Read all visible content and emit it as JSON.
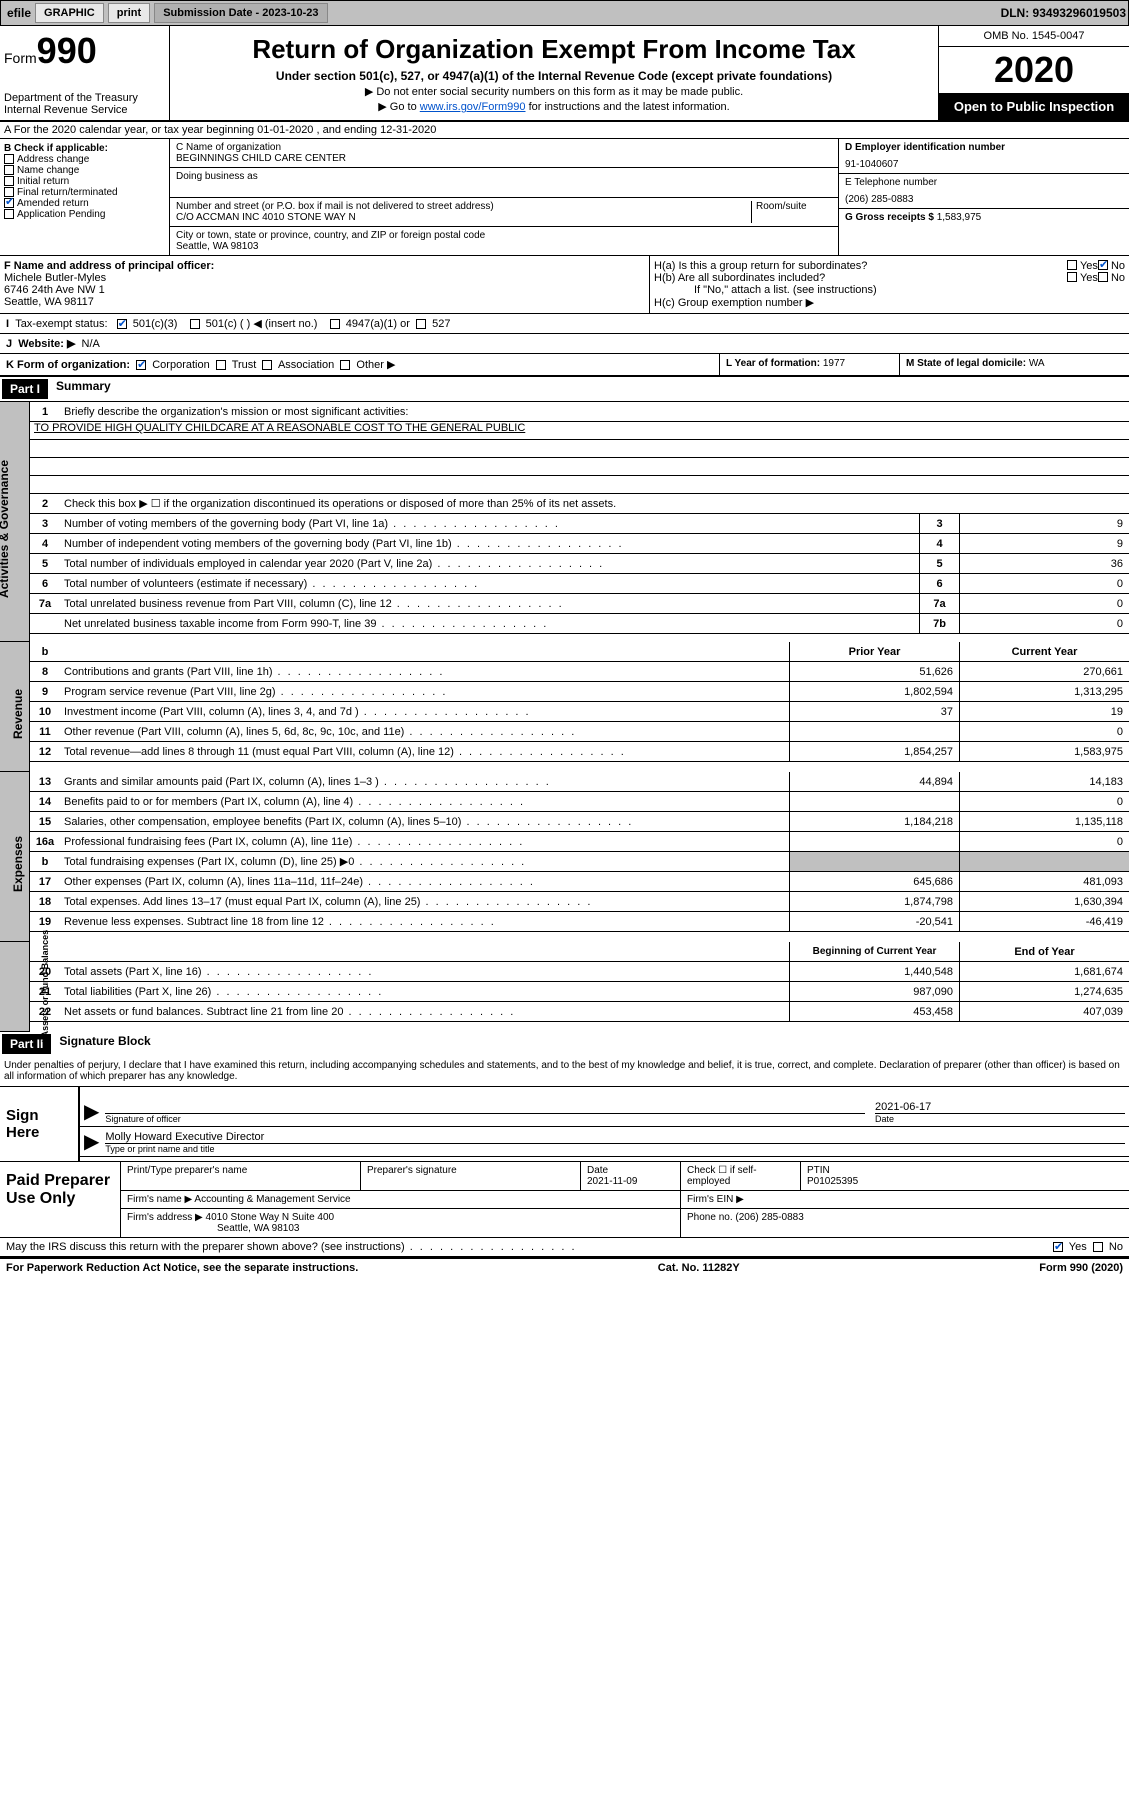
{
  "topbar": {
    "efile": "efile",
    "graphic": "GRAPHIC",
    "print": "print",
    "sub_label": "Submission Date - 2023-10-23",
    "dln": "DLN: 93493296019503"
  },
  "header": {
    "form": "Form",
    "num": "990",
    "dept": "Department of the Treasury\nInternal Revenue Service",
    "title": "Return of Organization Exempt From Income Tax",
    "sub1": "Under section 501(c), 527, or 4947(a)(1) of the Internal Revenue Code (except private foundations)",
    "note1": "▶ Do not enter social security numbers on this form as it may be made public.",
    "note2_pre": "▶ Go to ",
    "note2_link": "www.irs.gov/Form990",
    "note2_post": " for instructions and the latest information.",
    "omb": "OMB No. 1545-0047",
    "year": "2020",
    "public": "Open to Public Inspection"
  },
  "rowA": "A For the 2020 calendar year, or tax year beginning 01-01-2020   , and ending 12-31-2020",
  "sectionB": {
    "label": "B Check if applicable:",
    "addr": "Address change",
    "name": "Name change",
    "initial": "Initial return",
    "final": "Final return/terminated",
    "amended": "Amended return",
    "app": "Application Pending"
  },
  "sectionC": {
    "name_label": "C Name of organization",
    "name": "BEGINNINGS CHILD CARE CENTER",
    "dba": "Doing business as",
    "street_label": "Number and street (or P.O. box if mail is not delivered to street address)",
    "suite_label": "Room/suite",
    "street": "C/O ACCMAN INC 4010 STONE WAY N",
    "city_label": "City or town, state or province, country, and ZIP or foreign postal code",
    "city": "Seattle, WA  98103"
  },
  "sectionD": {
    "ein_label": "D Employer identification number",
    "ein": "91-1040607",
    "tel_label": "E Telephone number",
    "tel": "(206) 285-0883",
    "gross_label": "G Gross receipts $",
    "gross": "1,583,975"
  },
  "rowF": {
    "label": "F  Name and address of principal officer:",
    "name": "Michele Butler-Myles",
    "addr1": "6746 24th Ave NW 1",
    "addr2": "Seattle, WA  98117"
  },
  "rowH": {
    "ha": "H(a)  Is this a group return for subordinates?",
    "hb": "H(b)  Are all subordinates included?",
    "hb_note": "If \"No,\" attach a list. (see instructions)",
    "hc": "H(c)  Group exemption number ▶",
    "yes": "Yes",
    "no": "No"
  },
  "rowI": {
    "label": "Tax-exempt status:",
    "c3": "501(c)(3)",
    "c": "501(c) (  ) ◀ (insert no.)",
    "a1": "4947(a)(1) or",
    "s527": "527"
  },
  "rowJ": {
    "label": "Website: ▶",
    "val": "N/A"
  },
  "rowK": {
    "label": "K Form of organization:",
    "corp": "Corporation",
    "trust": "Trust",
    "assoc": "Association",
    "other": "Other ▶"
  },
  "rowL": {
    "label": "L Year of formation:",
    "val": "1977"
  },
  "rowM": {
    "label": "M State of legal domicile:",
    "val": "WA"
  },
  "partI": {
    "hdr": "Part I",
    "title": "Summary"
  },
  "summary": {
    "q1": "Briefly describe the organization's mission or most significant activities:",
    "mission": "TO PROVIDE HIGH QUALITY CHILDCARE AT A REASONABLE COST TO THE GENERAL PUBLIC",
    "q2": "Check this box ▶ ☐  if the organization discontinued its operations or disposed of more than 25% of its net assets.",
    "rows_gov": [
      {
        "n": "3",
        "d": "Number of voting members of the governing body (Part VI, line 1a)",
        "b": "3",
        "v": "9"
      },
      {
        "n": "4",
        "d": "Number of independent voting members of the governing body (Part VI, line 1b)",
        "b": "4",
        "v": "9"
      },
      {
        "n": "5",
        "d": "Total number of individuals employed in calendar year 2020 (Part V, line 2a)",
        "b": "5",
        "v": "36"
      },
      {
        "n": "6",
        "d": "Total number of volunteers (estimate if necessary)",
        "b": "6",
        "v": "0"
      },
      {
        "n": "7a",
        "d": "Total unrelated business revenue from Part VIII, column (C), line 12",
        "b": "7a",
        "v": "0"
      },
      {
        "n": "",
        "d": "Net unrelated business taxable income from Form 990-T, line 39",
        "b": "7b",
        "v": "0"
      }
    ],
    "prior_hdr": "Prior Year",
    "curr_hdr": "Current Year",
    "rows_rev": [
      {
        "n": "8",
        "d": "Contributions and grants (Part VIII, line 1h)",
        "p": "51,626",
        "c": "270,661"
      },
      {
        "n": "9",
        "d": "Program service revenue (Part VIII, line 2g)",
        "p": "1,802,594",
        "c": "1,313,295"
      },
      {
        "n": "10",
        "d": "Investment income (Part VIII, column (A), lines 3, 4, and 7d )",
        "p": "37",
        "c": "19"
      },
      {
        "n": "11",
        "d": "Other revenue (Part VIII, column (A), lines 5, 6d, 8c, 9c, 10c, and 11e)",
        "p": "",
        "c": "0"
      },
      {
        "n": "12",
        "d": "Total revenue—add lines 8 through 11 (must equal Part VIII, column (A), line 12)",
        "p": "1,854,257",
        "c": "1,583,975"
      }
    ],
    "rows_exp": [
      {
        "n": "13",
        "d": "Grants and similar amounts paid (Part IX, column (A), lines 1–3 )",
        "p": "44,894",
        "c": "14,183"
      },
      {
        "n": "14",
        "d": "Benefits paid to or for members (Part IX, column (A), line 4)",
        "p": "",
        "c": "0"
      },
      {
        "n": "15",
        "d": "Salaries, other compensation, employee benefits (Part IX, column (A), lines 5–10)",
        "p": "1,184,218",
        "c": "1,135,118"
      },
      {
        "n": "16a",
        "d": "Professional fundraising fees (Part IX, column (A), line 11e)",
        "p": "",
        "c": "0"
      },
      {
        "n": "b",
        "d": "Total fundraising expenses (Part IX, column (D), line 25) ▶0",
        "p": "GRAY",
        "c": "GRAY"
      },
      {
        "n": "17",
        "d": "Other expenses (Part IX, column (A), lines 11a–11d, 11f–24e)",
        "p": "645,686",
        "c": "481,093"
      },
      {
        "n": "18",
        "d": "Total expenses. Add lines 13–17 (must equal Part IX, column (A), line 25)",
        "p": "1,874,798",
        "c": "1,630,394"
      },
      {
        "n": "19",
        "d": "Revenue less expenses. Subtract line 18 from line 12",
        "p": "-20,541",
        "c": "-46,419"
      }
    ],
    "beg_hdr": "Beginning of Current Year",
    "end_hdr": "End of Year",
    "rows_net": [
      {
        "n": "20",
        "d": "Total assets (Part X, line 16)",
        "p": "1,440,548",
        "c": "1,681,674"
      },
      {
        "n": "21",
        "d": "Total liabilities (Part X, line 26)",
        "p": "987,090",
        "c": "1,274,635"
      },
      {
        "n": "22",
        "d": "Net assets or fund balances. Subtract line 21 from line 20",
        "p": "453,458",
        "c": "407,039"
      }
    ]
  },
  "side_labels": {
    "gov": "Activities & Governance",
    "rev": "Revenue",
    "exp": "Expenses",
    "net": "Net Assets or Fund Balances"
  },
  "partII": {
    "hdr": "Part II",
    "title": "Signature Block"
  },
  "sig": {
    "penalty": "Under penalties of perjury, I declare that I have examined this return, including accompanying schedules and statements, and to the best of my knowledge and belief, it is true, correct, and complete. Declaration of preparer (other than officer) is based on all information of which preparer has any knowledge.",
    "sign_here": "Sign Here",
    "sig_officer": "Signature of officer",
    "date_label": "Date",
    "date": "2021-06-17",
    "name": "Molly Howard  Executive Director",
    "type_name": "Type or print name and title"
  },
  "prep": {
    "paid": "Paid Preparer Use Only",
    "print_name": "Print/Type preparer's name",
    "prep_sig": "Preparer's signature",
    "date_label": "Date",
    "date": "2021-11-09",
    "check_label": "Check ☐ if self-employed",
    "ptin_label": "PTIN",
    "ptin": "P01025395",
    "firm_name_label": "Firm's name   ▶",
    "firm_name": "Accounting & Management Service",
    "firm_ein_label": "Firm's EIN ▶",
    "firm_addr_label": "Firm's address ▶",
    "firm_addr1": "4010 Stone Way N Suite 400",
    "firm_addr2": "Seattle, WA  98103",
    "phone_label": "Phone no.",
    "phone": "(206) 285-0883",
    "discuss": "May the IRS discuss this return with the preparer shown above? (see instructions)"
  },
  "footer": {
    "paperwork": "For Paperwork Reduction Act Notice, see the separate instructions.",
    "cat": "Cat. No. 11282Y",
    "form": "Form 990 (2020)"
  }
}
